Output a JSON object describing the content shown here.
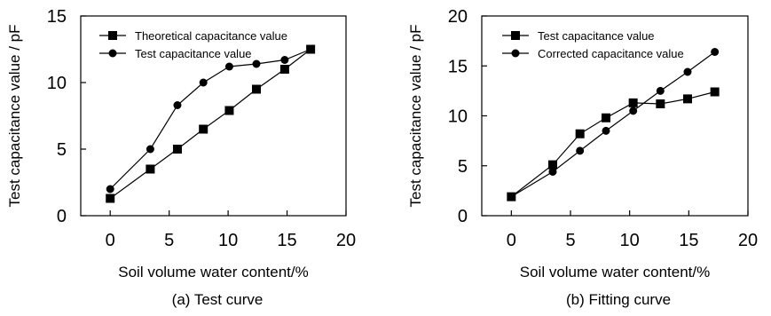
{
  "chart_data": [
    {
      "type": "line",
      "caption": "(a) Test curve",
      "xlabel": "Soil volume water content/%",
      "ylabel": "Test capacitance value / pF",
      "xlim": [
        -2.5,
        20
      ],
      "ylim": [
        0,
        15
      ],
      "xticks": [
        0,
        5,
        10,
        15,
        20
      ],
      "yticks": [
        0,
        5,
        10,
        15
      ],
      "grid": false,
      "legend": "top-left",
      "series": [
        {
          "name": "Theoretical capacitance value",
          "marker": "square",
          "x": [
            0,
            3.4,
            5.7,
            7.9,
            10.1,
            12.4,
            14.8,
            17.0
          ],
          "y": [
            1.3,
            3.5,
            5.0,
            6.5,
            7.9,
            9.5,
            11.0,
            12.5
          ]
        },
        {
          "name": "Test capacitance value",
          "marker": "circle",
          "x": [
            0,
            3.4,
            5.7,
            7.9,
            10.1,
            12.4,
            14.8,
            17.0
          ],
          "y": [
            2.0,
            5.0,
            8.3,
            10.0,
            11.2,
            11.4,
            11.7,
            12.5
          ]
        }
      ]
    },
    {
      "type": "line",
      "caption": "(b) Fitting curve",
      "xlabel": "Soil volume water content/%",
      "ylabel": "Test capacitance value / pF",
      "xlim": [
        -2.5,
        20
      ],
      "ylim": [
        0,
        20
      ],
      "xticks": [
        0,
        5,
        10,
        15,
        20
      ],
      "yticks": [
        0,
        5,
        10,
        15,
        20
      ],
      "grid": false,
      "legend": "top-left",
      "series": [
        {
          "name": "Test capacitance value",
          "marker": "square",
          "x": [
            0,
            3.5,
            5.8,
            8.0,
            10.3,
            12.6,
            14.9,
            17.2
          ],
          "y": [
            1.9,
            5.1,
            8.2,
            9.8,
            11.3,
            11.2,
            11.7,
            12.4
          ]
        },
        {
          "name": "Corrected capacitance value",
          "marker": "circle",
          "x": [
            0,
            3.5,
            5.8,
            8.0,
            10.3,
            12.6,
            14.9,
            17.2
          ],
          "y": [
            1.9,
            4.4,
            6.5,
            8.5,
            10.5,
            12.5,
            14.4,
            16.4
          ]
        }
      ]
    }
  ]
}
